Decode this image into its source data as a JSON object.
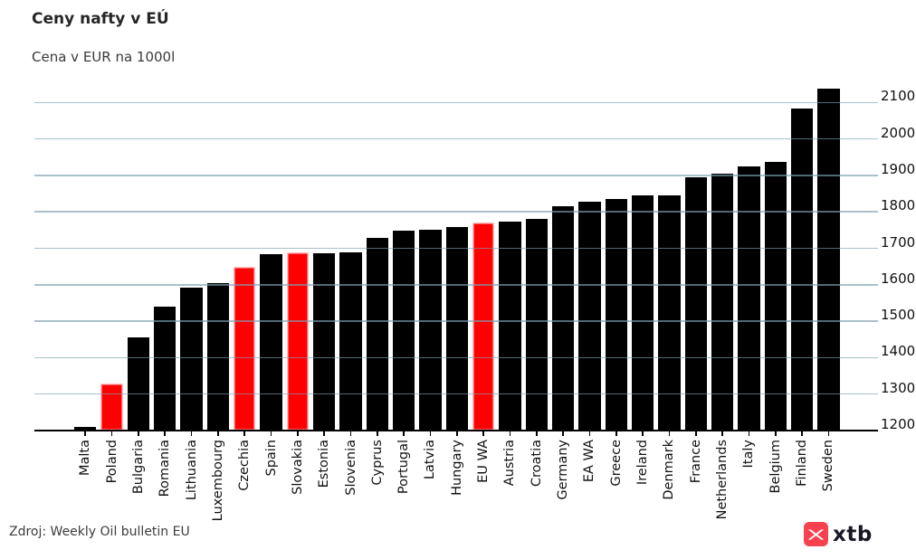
{
  "page": {
    "title": "Ceny nafty v EÚ",
    "subtitle": "Cena v EUR na 1000l",
    "source": "Zdroj: Weekly Oil bulletin EU"
  },
  "logo": {
    "text": "xtb"
  },
  "colors": {
    "bar": "#000000",
    "highlight": "#fd0000",
    "highlight_edge": "#ffc2c2",
    "gridline": "rgba(125,160,178,0.65)",
    "axis": "#000000",
    "logo_red": "#f8414e",
    "logo_text": "#191724"
  },
  "chart_data": {
    "type": "bar",
    "title": "Ceny nafty v EÚ",
    "subtitle": "Cena v EUR na 1000l",
    "ylabel": "",
    "xlabel": "",
    "categories": [
      "Malta",
      "Poland",
      "Bulgaria",
      "Romania",
      "Lithuania",
      "Luxembourg",
      "Czechia",
      "Spain",
      "Slovakia",
      "Estonia",
      "Slovenia",
      "Cyprus",
      "Portugal",
      "Latvia",
      "Hungary",
      "EU WA",
      "Austria",
      "Croatia",
      "Germany",
      "EA WA",
      "Greece",
      "Ireland",
      "Denmark",
      "France",
      "Netherlands",
      "Italy",
      "Belgium",
      "Finland",
      "Sweden"
    ],
    "values": [
      1210,
      1330,
      1455,
      1540,
      1593,
      1604,
      1650,
      1685,
      1689,
      1686,
      1688,
      1728,
      1748,
      1751,
      1759,
      1771,
      1773,
      1780,
      1815,
      1827,
      1835,
      1844,
      1846,
      1895,
      1905,
      1924,
      1936,
      2083,
      2139
    ],
    "highlighted": [
      "Poland",
      "Czechia",
      "Slovakia",
      "EU WA"
    ],
    "ylim": [
      1200,
      2150
    ],
    "yticks": [
      1200,
      1300,
      1400,
      1500,
      1600,
      1700,
      1800,
      1900,
      2000,
      2100
    ],
    "ytick_side": "right",
    "xtick_rotation": 90,
    "grid": true,
    "legend": null
  }
}
